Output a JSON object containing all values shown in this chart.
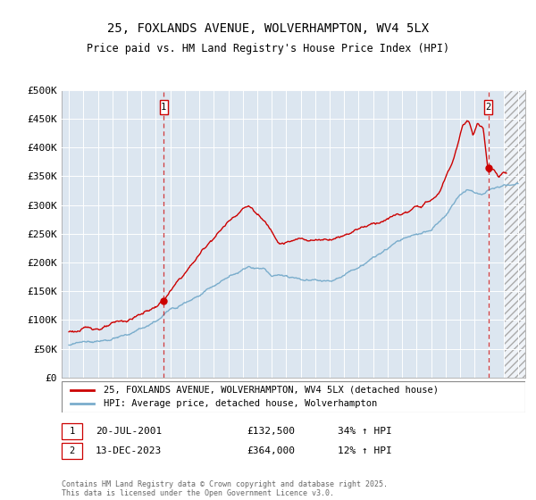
{
  "title": "25, FOXLANDS AVENUE, WOLVERHAMPTON, WV4 5LX",
  "subtitle": "Price paid vs. HM Land Registry's House Price Index (HPI)",
  "footer": "Contains HM Land Registry data © Crown copyright and database right 2025.\nThis data is licensed under the Open Government Licence v3.0.",
  "legend_line1": "25, FOXLANDS AVENUE, WOLVERHAMPTON, WV4 5LX (detached house)",
  "legend_line2": "HPI: Average price, detached house, Wolverhampton",
  "annotation1_date": "20-JUL-2001",
  "annotation1_price": "£132,500",
  "annotation1_hpi": "34% ↑ HPI",
  "annotation2_date": "13-DEC-2023",
  "annotation2_price": "£364,000",
  "annotation2_hpi": "12% ↑ HPI",
  "xlim": [
    1994.5,
    2026.5
  ],
  "ylim": [
    0,
    500000
  ],
  "yticks": [
    0,
    50000,
    100000,
    150000,
    200000,
    250000,
    300000,
    350000,
    400000,
    450000,
    500000
  ],
  "ytick_labels": [
    "£0",
    "£50K",
    "£100K",
    "£150K",
    "£200K",
    "£250K",
    "£300K",
    "£350K",
    "£400K",
    "£450K",
    "£500K"
  ],
  "xticks": [
    1995,
    1996,
    1997,
    1998,
    1999,
    2000,
    2001,
    2002,
    2003,
    2004,
    2005,
    2006,
    2007,
    2008,
    2009,
    2010,
    2011,
    2012,
    2013,
    2014,
    2015,
    2016,
    2017,
    2018,
    2019,
    2020,
    2021,
    2022,
    2023,
    2024,
    2025,
    2026
  ],
  "plot_bg_color": "#dce6f0",
  "fig_bg_color": "#ffffff",
  "red_color": "#cc0000",
  "blue_color": "#7aadcc",
  "marker1_x": 2001.55,
  "marker1_y": 132500,
  "marker2_x": 2023.95,
  "marker2_y": 364000,
  "hatch_start": 2025.0
}
